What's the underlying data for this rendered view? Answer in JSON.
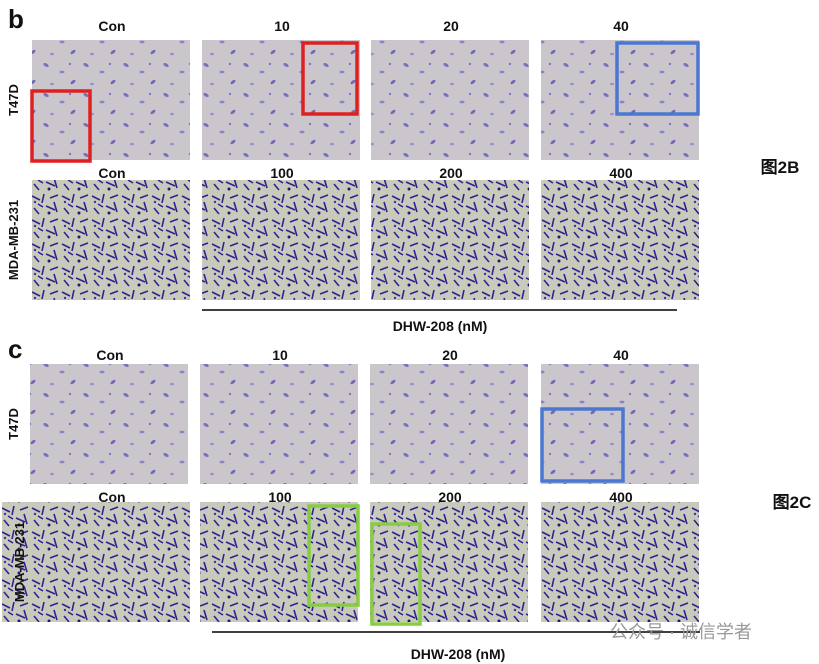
{
  "panels": [
    {
      "letter": "b",
      "side_label": "图2B",
      "xlabel": "DHW-208 (nM)",
      "rows": [
        {
          "label": "T47D",
          "columns": [
            "Con",
            "10",
            "20",
            "40"
          ]
        },
        {
          "label": "MDA-MB-231",
          "columns": [
            "Con",
            "100",
            "200",
            "400"
          ]
        }
      ]
    },
    {
      "letter": "c",
      "side_label": "图2C",
      "xlabel": "DHW-208 (nM)",
      "rows": [
        {
          "label": "T47D",
          "columns": [
            "Con",
            "10",
            "20",
            "40"
          ]
        },
        {
          "label": "MDA-MB-231",
          "columns": [
            "Con",
            "100",
            "200",
            "400"
          ]
        }
      ]
    }
  ],
  "watermark": "公众号 · 诚信学者"
}
